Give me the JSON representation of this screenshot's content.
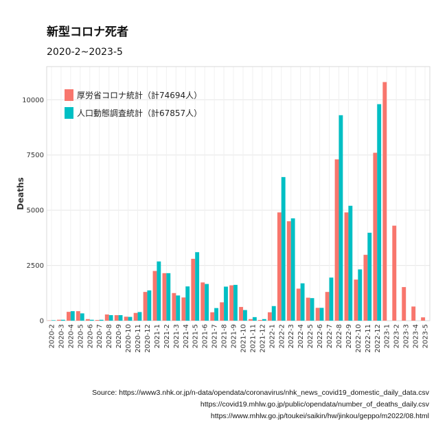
{
  "chart_data": {
    "type": "bar",
    "title": "新型コロナ死者",
    "subtitle": "2020-2~2023-5",
    "xlabel": "",
    "ylabel": "Deaths",
    "ylim": [
      0,
      11500
    ],
    "yticks": [
      0,
      2500,
      5000,
      7500,
      10000
    ],
    "grid": true,
    "legend_position": "top-left",
    "categories": [
      "2020-2",
      "2020-3",
      "2020-4",
      "2020-5",
      "2020-6",
      "2020-7",
      "2020-8",
      "2020-9",
      "2020-10",
      "2020-11",
      "2020-12",
      "2021-1",
      "2021-2",
      "2021-3",
      "2021-4",
      "2021-5",
      "2021-6",
      "2021-7",
      "2021-8",
      "2021-9",
      "2021-10",
      "2021-11",
      "2021-12",
      "2022-1",
      "2022-2",
      "2022-3",
      "2022-4",
      "2022-5",
      "2022-6",
      "2022-7",
      "2022-8",
      "2022-9",
      "2022-10",
      "2022-11",
      "2022-12",
      "2023-1",
      "2023-2",
      "2023-3",
      "2023-4",
      "2023-5"
    ],
    "series": [
      {
        "name": "厚労省コロナ統計（計74694人）",
        "color": "#F8766D",
        "values": [
          10,
          40,
          400,
          430,
          70,
          30,
          280,
          250,
          180,
          350,
          1300,
          2250,
          2150,
          1250,
          1050,
          2800,
          1730,
          380,
          830,
          1600,
          620,
          70,
          30,
          380,
          4900,
          4500,
          1450,
          1040,
          580,
          1300,
          7300,
          4900,
          1860,
          2980,
          7600,
          10800,
          4300,
          1520,
          640,
          150
        ]
      },
      {
        "name": "人口動態調査統計（計67857人）",
        "color": "#00BFC4",
        "values": [
          20,
          40,
          430,
          330,
          40,
          40,
          250,
          250,
          170,
          390,
          1370,
          2680,
          2150,
          1140,
          1550,
          3100,
          1660,
          570,
          1540,
          1620,
          480,
          160,
          70,
          660,
          6500,
          4630,
          1690,
          1020,
          580,
          1950,
          9300,
          5200,
          2320,
          3980,
          9800,
          0,
          0,
          0,
          0,
          0
        ]
      }
    ]
  },
  "source": {
    "lines": [
      "Source:  https://www3.nhk.or.jp/n-data/opendata/coronavirus/nhk_news_covid19_domestic_daily_data.csv",
      "https://covid19.mhlw.go.jp/public/opendata/number_of_deaths_daily.csv",
      "https://www.mhlw.go.jp/toukei/saikin/hw/jinkou/geppo/m2022/08.html"
    ]
  }
}
